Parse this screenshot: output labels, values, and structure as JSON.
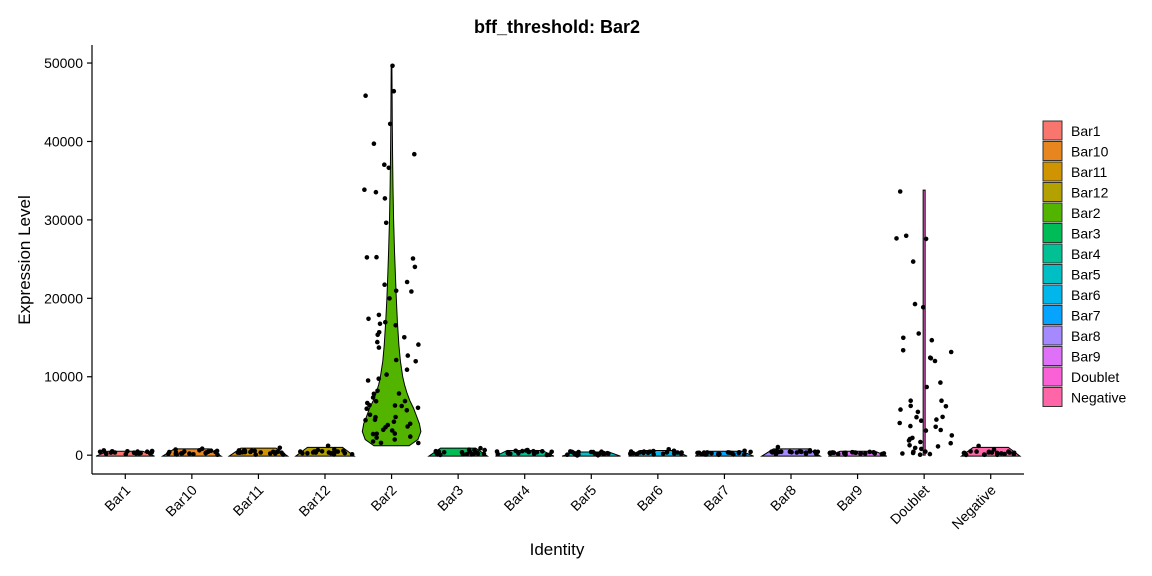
{
  "chart_data": {
    "type": "violin",
    "title": "bff_threshold: Bar2",
    "xlabel": "Identity",
    "ylabel": "Expression Level",
    "ylim": [
      -2400,
      52300
    ],
    "y_ticks": [
      0,
      10000,
      20000,
      30000,
      40000,
      50000
    ],
    "y_tick_labels": [
      "0",
      "10000",
      "20000",
      "30000",
      "40000",
      "50000"
    ],
    "categories": [
      "Bar1",
      "Bar10",
      "Bar11",
      "Bar12",
      "Bar2",
      "Bar3",
      "Bar4",
      "Bar5",
      "Bar6",
      "Bar7",
      "Bar8",
      "Bar9",
      "Doublet",
      "Negative"
    ],
    "colors": [
      "#F8766D",
      "#E7851E",
      "#D09400",
      "#B2A100",
      "#53B400",
      "#00BC56",
      "#00C094",
      "#00BFC4",
      "#00B6EB",
      "#06A4FF",
      "#A58AFF",
      "#DF70F8",
      "#FB61D7",
      "#FF66A8"
    ],
    "legend_position": "right",
    "grid": false,
    "series": [
      {
        "name": "Bar1",
        "max": 500,
        "points": [
          310,
          280,
          350,
          250,
          400,
          300,
          220,
          380,
          260,
          330,
          290,
          450,
          240,
          310,
          360,
          270,
          320,
          230,
          410,
          300
        ]
      },
      {
        "name": "Bar10",
        "max": 800,
        "points": [
          350,
          300,
          420,
          280,
          500,
          330,
          260,
          450,
          310,
          380,
          290,
          600,
          270,
          340,
          800,
          310,
          360,
          250,
          440,
          320
        ]
      },
      {
        "name": "Bar11",
        "max": 900,
        "points": [
          320,
          290,
          380,
          260,
          450,
          310,
          240,
          410,
          280,
          350,
          300,
          600,
          900,
          330,
          370,
          260,
          320,
          240,
          430,
          310
        ]
      },
      {
        "name": "Bar12",
        "max": 1000,
        "points": [
          400,
          350,
          450,
          300,
          550,
          380,
          280,
          500,
          320,
          420,
          330,
          700,
          1000,
          360,
          410,
          300,
          380,
          270,
          480,
          350
        ]
      },
      {
        "name": "Bar2",
        "min": 1200,
        "max": 49700,
        "violin": [
          [
            1200,
            0.6
          ],
          [
            2000,
            0.9
          ],
          [
            3000,
            1.0
          ],
          [
            4000,
            0.95
          ],
          [
            5000,
            0.85
          ],
          [
            6000,
            0.75
          ],
          [
            7000,
            0.62
          ],
          [
            8000,
            0.52
          ],
          [
            9000,
            0.44
          ],
          [
            10000,
            0.38
          ],
          [
            12000,
            0.3
          ],
          [
            14000,
            0.25
          ],
          [
            17000,
            0.2
          ],
          [
            20000,
            0.16
          ],
          [
            23000,
            0.13
          ],
          [
            26000,
            0.1
          ],
          [
            30000,
            0.07
          ],
          [
            34000,
            0.05
          ],
          [
            38000,
            0.035
          ],
          [
            42000,
            0.025
          ],
          [
            46000,
            0.018
          ],
          [
            49700,
            0.012
          ]
        ],
        "points": [
          49700,
          46500,
          46000,
          42300,
          39500,
          38500,
          36800,
          36700,
          34100,
          33700,
          32500,
          29700,
          25400,
          25200,
          24900,
          24100,
          22000,
          21800,
          21000,
          20900,
          20000,
          18100,
          17600,
          17000,
          16800,
          16400,
          15800,
          15300,
          14800,
          14500,
          14000,
          13500,
          12700,
          12300,
          11800,
          11100,
          10400,
          9800,
          9300,
          8400,
          8000,
          7800,
          7500,
          7100,
          6900,
          6700,
          6500,
          6300,
          6100,
          5900,
          5700,
          5500,
          5300,
          5100,
          4900,
          4700,
          4500,
          4300,
          4100,
          3900,
          3700,
          3500,
          3300,
          3100,
          2900,
          2700,
          2500,
          2300,
          2100,
          1900,
          1700,
          1500,
          1300
        ]
      },
      {
        "name": "Bar3",
        "max": 900,
        "points": [
          300,
          260,
          380,
          240,
          450,
          300,
          220,
          420,
          260,
          340,
          280,
          650,
          900,
          310,
          350,
          250,
          300,
          230,
          400,
          290
        ]
      },
      {
        "name": "Bar4",
        "max": 600,
        "points": [
          330,
          290,
          380,
          260,
          450,
          310,
          240,
          410,
          280,
          350,
          300,
          600,
          250,
          330,
          370,
          260,
          320,
          240,
          430,
          310
        ]
      },
      {
        "name": "Bar5",
        "max": 400,
        "points": [
          220,
          200,
          250,
          180,
          300,
          230,
          170,
          280,
          200,
          240,
          210,
          350,
          190,
          230,
          260,
          200,
          230,
          180,
          270,
          220
        ]
      },
      {
        "name": "Bar6",
        "max": 600,
        "points": [
          330,
          290,
          380,
          260,
          450,
          310,
          240,
          410,
          280,
          350,
          300,
          550,
          250,
          330,
          370,
          260,
          320,
          240,
          430,
          310
        ]
      },
      {
        "name": "Bar7",
        "max": 500,
        "points": [
          300,
          270,
          340,
          250,
          400,
          290,
          230,
          380,
          260,
          320,
          280,
          480,
          240,
          300,
          350,
          260,
          310,
          230,
          390,
          290
        ]
      },
      {
        "name": "Bar8",
        "max": 800,
        "points": [
          340,
          300,
          400,
          270,
          480,
          320,
          250,
          430,
          290,
          360,
          300,
          650,
          800,
          330,
          380,
          270,
          330,
          250,
          440,
          320
        ]
      },
      {
        "name": "Bar9",
        "max": 500,
        "points": [
          320,
          280,
          360,
          260,
          420,
          300,
          240,
          390,
          270,
          330,
          290,
          480,
          250,
          310,
          360,
          270,
          320,
          240,
          400,
          300
        ]
      },
      {
        "name": "Doublet",
        "max": 33800,
        "points": [
          33800,
          28100,
          27800,
          27700,
          24700,
          19500,
          18900,
          15600,
          14900,
          14800,
          13300,
          13200,
          12400,
          12200,
          11800,
          9000,
          8700,
          7000,
          6700,
          6400,
          6100,
          5900,
          5500,
          5000,
          4800,
          4600,
          4300,
          4000,
          3700,
          3500,
          3300,
          3000,
          2700,
          2400,
          2200,
          1900,
          1600,
          1400,
          1200,
          1000,
          800,
          600,
          500,
          400,
          350,
          300,
          250,
          200
        ]
      },
      {
        "name": "Negative",
        "max": 1000,
        "points": [
          300,
          260,
          360,
          240,
          450,
          300,
          220,
          420,
          260,
          340,
          280,
          700,
          1000,
          310,
          350,
          250,
          300,
          230,
          400,
          290
        ]
      }
    ]
  }
}
